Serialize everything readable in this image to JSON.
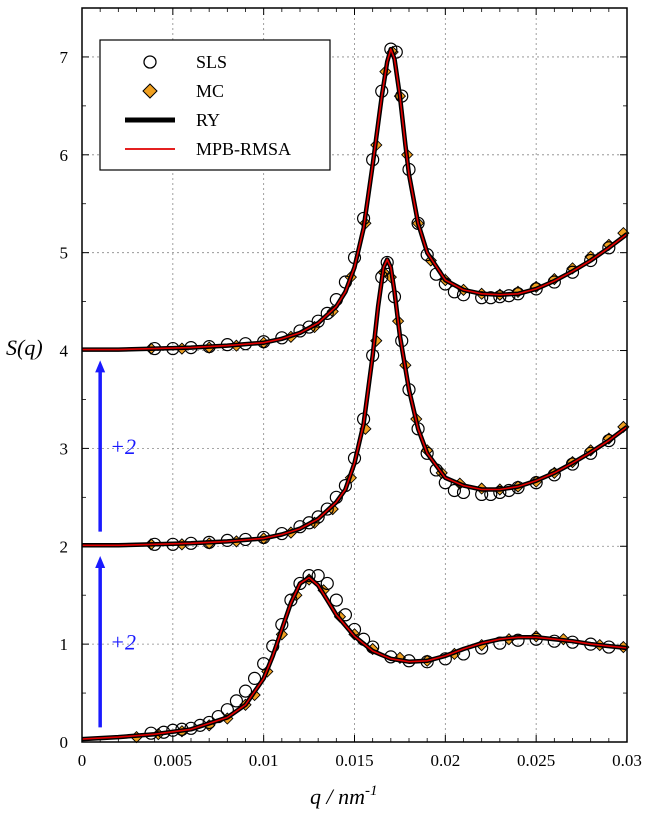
{
  "chart_data": {
    "type": "line",
    "xlabel": "q / nm",
    "xlabel_sup": "-1",
    "ylabel": "S(q)",
    "xlim": [
      0,
      0.03
    ],
    "ylim": [
      0,
      7.5
    ],
    "x_ticks": [
      "0",
      "0.005",
      "0.01",
      "0.015",
      "0.02",
      "0.025",
      "0.03"
    ],
    "x_tick_values": [
      0,
      0.005,
      0.01,
      0.015,
      0.02,
      0.025,
      0.03
    ],
    "y_ticks": [
      "0",
      "1",
      "2",
      "3",
      "4",
      "5",
      "6",
      "7"
    ],
    "y_tick_values": [
      0,
      1,
      2,
      3,
      4,
      5,
      6,
      7
    ],
    "grid": true,
    "legend_position": "top-left",
    "legend": [
      {
        "label": "SLS",
        "marker": "open-circle"
      },
      {
        "label": "MC",
        "marker": "diamond",
        "color": "#f0a020"
      },
      {
        "label": "RY",
        "marker": "thick-line",
        "color": "#000000"
      },
      {
        "label": "MPB-RMSA",
        "marker": "line",
        "color": "#e00000"
      }
    ],
    "annotations": [
      {
        "text": "+2",
        "arrow_from": [
          0.001,
          0.15
        ],
        "arrow_to": [
          0.001,
          1.9
        ]
      },
      {
        "text": "+2",
        "arrow_from": [
          0.001,
          2.15
        ],
        "arrow_to": [
          0.001,
          3.9
        ]
      }
    ],
    "curves": [
      {
        "offset": 0,
        "x": [
          0.0,
          0.002,
          0.004,
          0.006,
          0.008,
          0.009,
          0.01,
          0.0105,
          0.011,
          0.0115,
          0.012,
          0.0125,
          0.013,
          0.0135,
          0.014,
          0.015,
          0.016,
          0.017,
          0.018,
          0.019,
          0.02,
          0.021,
          0.022,
          0.023,
          0.024,
          0.025,
          0.026,
          0.027,
          0.028,
          0.029,
          0.03
        ],
        "y": [
          0.03,
          0.05,
          0.08,
          0.13,
          0.25,
          0.38,
          0.65,
          0.88,
          1.15,
          1.42,
          1.62,
          1.68,
          1.6,
          1.45,
          1.3,
          1.08,
          0.93,
          0.85,
          0.82,
          0.83,
          0.88,
          0.95,
          1.01,
          1.05,
          1.07,
          1.07,
          1.05,
          1.03,
          1.0,
          0.98,
          0.96
        ]
      },
      {
        "offset": 2,
        "x": [
          0.0,
          0.002,
          0.004,
          0.006,
          0.008,
          0.01,
          0.011,
          0.012,
          0.013,
          0.014,
          0.0145,
          0.015,
          0.0155,
          0.016,
          0.0163,
          0.0166,
          0.0168,
          0.017,
          0.0172,
          0.0175,
          0.018,
          0.0185,
          0.019,
          0.02,
          0.021,
          0.022,
          0.023,
          0.024,
          0.025,
          0.026,
          0.027,
          0.028,
          0.029,
          0.03
        ],
        "y": [
          2.01,
          2.01,
          2.02,
          2.03,
          2.05,
          2.08,
          2.12,
          2.18,
          2.28,
          2.45,
          2.58,
          2.85,
          3.25,
          3.95,
          4.45,
          4.85,
          4.93,
          4.85,
          4.6,
          4.15,
          3.6,
          3.2,
          2.95,
          2.7,
          2.62,
          2.58,
          2.58,
          2.61,
          2.67,
          2.75,
          2.85,
          2.96,
          3.08,
          3.22
        ]
      },
      {
        "offset": 4,
        "x": [
          0.0,
          0.002,
          0.004,
          0.006,
          0.008,
          0.01,
          0.011,
          0.012,
          0.013,
          0.014,
          0.0145,
          0.015,
          0.0155,
          0.016,
          0.0165,
          0.0168,
          0.017,
          0.0172,
          0.0175,
          0.0178,
          0.018,
          0.0185,
          0.019,
          0.02,
          0.021,
          0.022,
          0.023,
          0.024,
          0.025,
          0.026,
          0.027,
          0.028,
          0.029,
          0.03
        ],
        "y": [
          4.01,
          4.01,
          4.02,
          4.03,
          4.05,
          4.08,
          4.12,
          4.18,
          4.28,
          4.45,
          4.6,
          4.85,
          5.25,
          5.9,
          6.6,
          6.95,
          7.08,
          6.98,
          6.6,
          6.1,
          5.8,
          5.3,
          5.0,
          4.72,
          4.62,
          4.58,
          4.57,
          4.58,
          4.63,
          4.71,
          4.81,
          4.92,
          5.05,
          5.19
        ]
      }
    ],
    "sls_points": [
      {
        "x": 0.0038,
        "y": 0.09
      },
      {
        "x": 0.0045,
        "y": 0.1
      },
      {
        "x": 0.005,
        "y": 0.12
      },
      {
        "x": 0.0055,
        "y": 0.13
      },
      {
        "x": 0.006,
        "y": 0.14
      },
      {
        "x": 0.0065,
        "y": 0.17
      },
      {
        "x": 0.007,
        "y": 0.2
      },
      {
        "x": 0.0075,
        "y": 0.26
      },
      {
        "x": 0.008,
        "y": 0.33
      },
      {
        "x": 0.0085,
        "y": 0.42
      },
      {
        "x": 0.009,
        "y": 0.52
      },
      {
        "x": 0.0095,
        "y": 0.65
      },
      {
        "x": 0.01,
        "y": 0.8
      },
      {
        "x": 0.0105,
        "y": 0.98
      },
      {
        "x": 0.011,
        "y": 1.2
      },
      {
        "x": 0.0115,
        "y": 1.45
      },
      {
        "x": 0.012,
        "y": 1.62
      },
      {
        "x": 0.0125,
        "y": 1.7
      },
      {
        "x": 0.013,
        "y": 1.7
      },
      {
        "x": 0.0135,
        "y": 1.62
      },
      {
        "x": 0.014,
        "y": 1.45
      },
      {
        "x": 0.0145,
        "y": 1.3
      },
      {
        "x": 0.015,
        "y": 1.15
      },
      {
        "x": 0.0155,
        "y": 1.05
      },
      {
        "x": 0.016,
        "y": 0.97
      },
      {
        "x": 0.017,
        "y": 0.87
      },
      {
        "x": 0.018,
        "y": 0.83
      },
      {
        "x": 0.019,
        "y": 0.82
      },
      {
        "x": 0.02,
        "y": 0.85
      },
      {
        "x": 0.021,
        "y": 0.9
      },
      {
        "x": 0.022,
        "y": 0.96
      },
      {
        "x": 0.023,
        "y": 1.01
      },
      {
        "x": 0.024,
        "y": 1.04
      },
      {
        "x": 0.025,
        "y": 1.05
      },
      {
        "x": 0.026,
        "y": 1.03
      },
      {
        "x": 0.027,
        "y": 1.02
      },
      {
        "x": 0.028,
        "y": 1.0
      },
      {
        "x": 0.029,
        "y": 0.97
      },
      {
        "x": 0.004,
        "y": 2.02
      },
      {
        "x": 0.005,
        "y": 2.02
      },
      {
        "x": 0.006,
        "y": 2.03
      },
      {
        "x": 0.007,
        "y": 2.04
      },
      {
        "x": 0.008,
        "y": 2.06
      },
      {
        "x": 0.009,
        "y": 2.07
      },
      {
        "x": 0.01,
        "y": 2.09
      },
      {
        "x": 0.011,
        "y": 2.13
      },
      {
        "x": 0.012,
        "y": 2.2
      },
      {
        "x": 0.0125,
        "y": 2.24
      },
      {
        "x": 0.013,
        "y": 2.3
      },
      {
        "x": 0.0135,
        "y": 2.38
      },
      {
        "x": 0.014,
        "y": 2.5
      },
      {
        "x": 0.0145,
        "y": 2.62
      },
      {
        "x": 0.015,
        "y": 2.9
      },
      {
        "x": 0.0155,
        "y": 3.3
      },
      {
        "x": 0.016,
        "y": 3.95
      },
      {
        "x": 0.0165,
        "y": 4.75
      },
      {
        "x": 0.0168,
        "y": 4.9
      },
      {
        "x": 0.0172,
        "y": 4.55
      },
      {
        "x": 0.0176,
        "y": 4.1
      },
      {
        "x": 0.018,
        "y": 3.6
      },
      {
        "x": 0.0185,
        "y": 3.2
      },
      {
        "x": 0.019,
        "y": 2.95
      },
      {
        "x": 0.0195,
        "y": 2.78
      },
      {
        "x": 0.02,
        "y": 2.65
      },
      {
        "x": 0.0205,
        "y": 2.57
      },
      {
        "x": 0.021,
        "y": 2.55
      },
      {
        "x": 0.022,
        "y": 2.53
      },
      {
        "x": 0.0225,
        "y": 2.53
      },
      {
        "x": 0.023,
        "y": 2.55
      },
      {
        "x": 0.0235,
        "y": 2.57
      },
      {
        "x": 0.024,
        "y": 2.6
      },
      {
        "x": 0.025,
        "y": 2.65
      },
      {
        "x": 0.026,
        "y": 2.73
      },
      {
        "x": 0.027,
        "y": 2.84
      },
      {
        "x": 0.028,
        "y": 2.95
      },
      {
        "x": 0.029,
        "y": 3.08
      },
      {
        "x": 0.004,
        "y": 4.02
      },
      {
        "x": 0.005,
        "y": 4.02
      },
      {
        "x": 0.006,
        "y": 4.03
      },
      {
        "x": 0.007,
        "y": 4.04
      },
      {
        "x": 0.008,
        "y": 4.06
      },
      {
        "x": 0.009,
        "y": 4.07
      },
      {
        "x": 0.01,
        "y": 4.09
      },
      {
        "x": 0.011,
        "y": 4.13
      },
      {
        "x": 0.012,
        "y": 4.2
      },
      {
        "x": 0.0125,
        "y": 4.24
      },
      {
        "x": 0.013,
        "y": 4.3
      },
      {
        "x": 0.0135,
        "y": 4.38
      },
      {
        "x": 0.014,
        "y": 4.52
      },
      {
        "x": 0.0145,
        "y": 4.7
      },
      {
        "x": 0.015,
        "y": 4.95
      },
      {
        "x": 0.0155,
        "y": 5.35
      },
      {
        "x": 0.016,
        "y": 5.95
      },
      {
        "x": 0.0165,
        "y": 6.65
      },
      {
        "x": 0.017,
        "y": 7.08
      },
      {
        "x": 0.0173,
        "y": 7.05
      },
      {
        "x": 0.0176,
        "y": 6.6
      },
      {
        "x": 0.018,
        "y": 5.85
      },
      {
        "x": 0.0185,
        "y": 5.3
      },
      {
        "x": 0.019,
        "y": 4.98
      },
      {
        "x": 0.0195,
        "y": 4.78
      },
      {
        "x": 0.02,
        "y": 4.68
      },
      {
        "x": 0.0205,
        "y": 4.6
      },
      {
        "x": 0.021,
        "y": 4.57
      },
      {
        "x": 0.022,
        "y": 4.54
      },
      {
        "x": 0.0225,
        "y": 4.54
      },
      {
        "x": 0.023,
        "y": 4.55
      },
      {
        "x": 0.0235,
        "y": 4.56
      },
      {
        "x": 0.024,
        "y": 4.58
      },
      {
        "x": 0.025,
        "y": 4.63
      },
      {
        "x": 0.026,
        "y": 4.7
      },
      {
        "x": 0.027,
        "y": 4.8
      },
      {
        "x": 0.028,
        "y": 4.92
      },
      {
        "x": 0.029,
        "y": 5.05
      }
    ],
    "mc_points": [
      {
        "x": 0.003,
        "y": 0.05
      },
      {
        "x": 0.0042,
        "y": 0.08
      },
      {
        "x": 0.0055,
        "y": 0.11
      },
      {
        "x": 0.007,
        "y": 0.17
      },
      {
        "x": 0.008,
        "y": 0.24
      },
      {
        "x": 0.009,
        "y": 0.38
      },
      {
        "x": 0.0095,
        "y": 0.48
      },
      {
        "x": 0.0102,
        "y": 0.72
      },
      {
        "x": 0.011,
        "y": 1.1
      },
      {
        "x": 0.0118,
        "y": 1.5
      },
      {
        "x": 0.0125,
        "y": 1.66
      },
      {
        "x": 0.0133,
        "y": 1.55
      },
      {
        "x": 0.0142,
        "y": 1.28
      },
      {
        "x": 0.015,
        "y": 1.1
      },
      {
        "x": 0.016,
        "y": 0.95
      },
      {
        "x": 0.0175,
        "y": 0.86
      },
      {
        "x": 0.019,
        "y": 0.83
      },
      {
        "x": 0.0205,
        "y": 0.9
      },
      {
        "x": 0.022,
        "y": 0.99
      },
      {
        "x": 0.0235,
        "y": 1.05
      },
      {
        "x": 0.025,
        "y": 1.08
      },
      {
        "x": 0.0265,
        "y": 1.05
      },
      {
        "x": 0.0285,
        "y": 0.99
      },
      {
        "x": 0.0298,
        "y": 0.97
      },
      {
        "x": 0.0038,
        "y": 2.02
      },
      {
        "x": 0.0055,
        "y": 2.02
      },
      {
        "x": 0.007,
        "y": 2.03
      },
      {
        "x": 0.0085,
        "y": 2.05
      },
      {
        "x": 0.01,
        "y": 2.08
      },
      {
        "x": 0.0115,
        "y": 2.14
      },
      {
        "x": 0.0128,
        "y": 2.24
      },
      {
        "x": 0.0138,
        "y": 2.38
      },
      {
        "x": 0.0148,
        "y": 2.7
      },
      {
        "x": 0.0156,
        "y": 3.2
      },
      {
        "x": 0.0162,
        "y": 4.1
      },
      {
        "x": 0.0166,
        "y": 4.8
      },
      {
        "x": 0.017,
        "y": 4.75
      },
      {
        "x": 0.0174,
        "y": 4.3
      },
      {
        "x": 0.0178,
        "y": 3.85
      },
      {
        "x": 0.0184,
        "y": 3.3
      },
      {
        "x": 0.019,
        "y": 2.98
      },
      {
        "x": 0.0198,
        "y": 2.75
      },
      {
        "x": 0.0208,
        "y": 2.64
      },
      {
        "x": 0.022,
        "y": 2.59
      },
      {
        "x": 0.023,
        "y": 2.58
      },
      {
        "x": 0.024,
        "y": 2.61
      },
      {
        "x": 0.025,
        "y": 2.66
      },
      {
        "x": 0.026,
        "y": 2.75
      },
      {
        "x": 0.027,
        "y": 2.86
      },
      {
        "x": 0.028,
        "y": 2.98
      },
      {
        "x": 0.029,
        "y": 3.1
      },
      {
        "x": 0.0298,
        "y": 3.22
      },
      {
        "x": 0.0038,
        "y": 4.02
      },
      {
        "x": 0.0055,
        "y": 4.02
      },
      {
        "x": 0.007,
        "y": 4.03
      },
      {
        "x": 0.0085,
        "y": 4.05
      },
      {
        "x": 0.01,
        "y": 4.08
      },
      {
        "x": 0.0115,
        "y": 4.14
      },
      {
        "x": 0.0128,
        "y": 4.24
      },
      {
        "x": 0.0138,
        "y": 4.4
      },
      {
        "x": 0.0148,
        "y": 4.75
      },
      {
        "x": 0.0156,
        "y": 5.3
      },
      {
        "x": 0.0162,
        "y": 6.1
      },
      {
        "x": 0.0167,
        "y": 6.85
      },
      {
        "x": 0.0171,
        "y": 7.05
      },
      {
        "x": 0.0175,
        "y": 6.6
      },
      {
        "x": 0.0179,
        "y": 6.0
      },
      {
        "x": 0.0185,
        "y": 5.3
      },
      {
        "x": 0.0192,
        "y": 4.92
      },
      {
        "x": 0.02,
        "y": 4.72
      },
      {
        "x": 0.021,
        "y": 4.62
      },
      {
        "x": 0.022,
        "y": 4.58
      },
      {
        "x": 0.023,
        "y": 4.57
      },
      {
        "x": 0.024,
        "y": 4.6
      },
      {
        "x": 0.025,
        "y": 4.65
      },
      {
        "x": 0.026,
        "y": 4.73
      },
      {
        "x": 0.027,
        "y": 4.84
      },
      {
        "x": 0.028,
        "y": 4.96
      },
      {
        "x": 0.029,
        "y": 5.08
      },
      {
        "x": 0.0298,
        "y": 5.2
      }
    ]
  }
}
